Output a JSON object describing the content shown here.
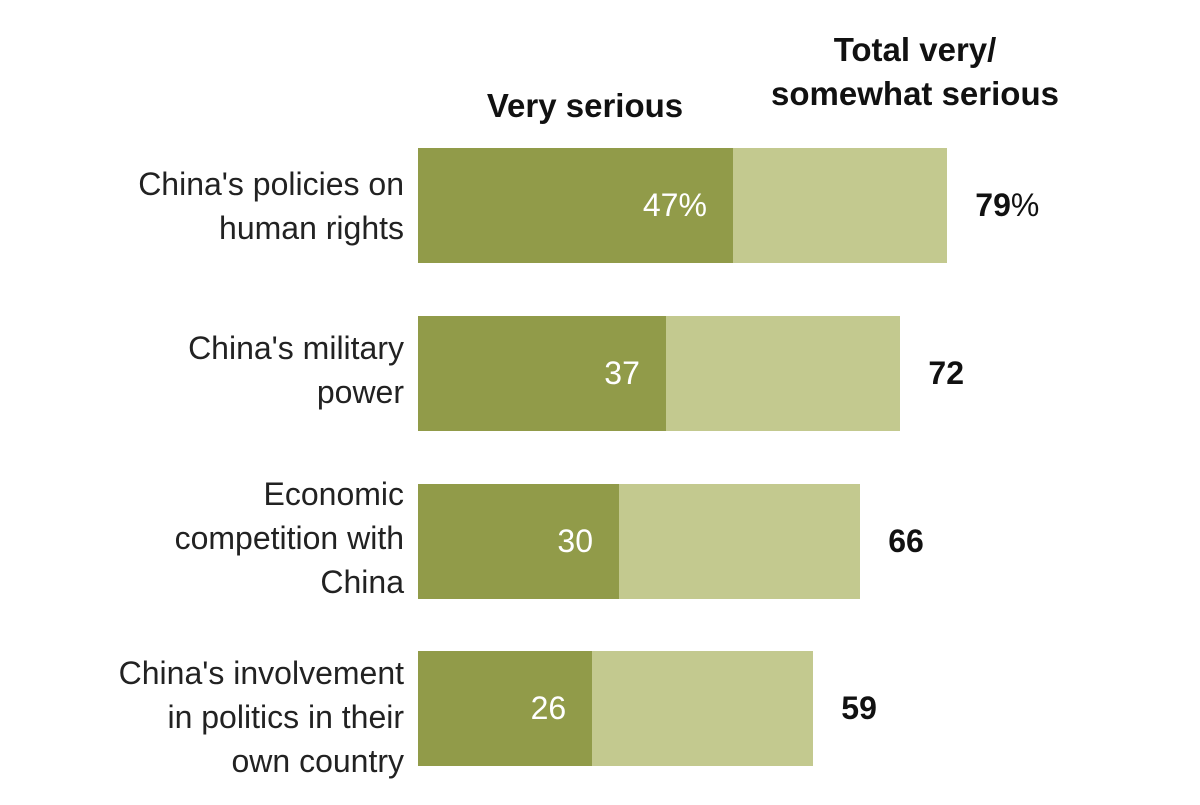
{
  "colors": {
    "very": "#919b49",
    "total": "#c3c98f"
  },
  "chart_data": {
    "type": "bar",
    "orientation": "horizontal",
    "stacked": "overlay",
    "headers": {
      "very": "Very serious",
      "total": "Total very/\nsomewhat serious"
    },
    "categories": [
      "China's policies on\nhuman rights",
      "China's military\npower",
      "Economic\ncompetition with\nChina",
      "China's involvement\nin politics in their\nown country"
    ],
    "series": [
      {
        "name": "Very serious",
        "values": [
          47,
          37,
          30,
          26
        ],
        "labels": [
          "47%",
          "37",
          "30",
          "26"
        ]
      },
      {
        "name": "Total very/somewhat serious",
        "values": [
          79,
          72,
          66,
          59
        ],
        "labels": [
          "79",
          "72",
          "66",
          "59"
        ]
      }
    ],
    "first_total_suffix": "%",
    "xlim": [
      0,
      100
    ]
  }
}
